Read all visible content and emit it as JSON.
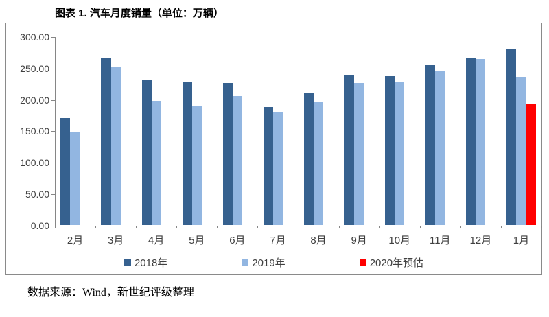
{
  "title": "图表 1. 汽车月度销量（单位：万辆）",
  "source": "数据来源：Wind，新世纪评级整理",
  "colors": {
    "series_2018": "#36618F",
    "series_2019": "#92B6E1",
    "series_2020": "#FF0000",
    "axis_line": "#868686",
    "tick_label": "#404040",
    "frame_border": "#8A8A8A"
  },
  "chart_data": {
    "type": "bar",
    "title": "图表 1. 汽车月度销量（单位：万辆）",
    "categories": [
      "2月",
      "3月",
      "4月",
      "5月",
      "6月",
      "7月",
      "8月",
      "9月",
      "10月",
      "11月",
      "12月",
      "1月"
    ],
    "series": [
      {
        "name": "2018年",
        "color": "#36618F",
        "values": [
          171,
          266,
          232,
          229,
          227,
          189,
          210,
          239,
          238,
          255,
          266,
          281
        ]
      },
      {
        "name": "2019年",
        "color": "#92B6E1",
        "values": [
          148,
          252,
          198,
          191,
          206,
          181,
          196,
          227,
          228,
          246,
          265,
          237
        ]
      },
      {
        "name": "2020年预估",
        "color": "#FF0000",
        "values": [
          null,
          null,
          null,
          null,
          null,
          null,
          null,
          null,
          null,
          null,
          null,
          194
        ]
      }
    ],
    "ylim": [
      0,
      300
    ],
    "ytick_step": 50,
    "ytick_labels": [
      "0.00",
      "50.00",
      "100.00",
      "150.00",
      "200.00",
      "250.00",
      "300.00"
    ],
    "grid": false,
    "legend_position": "bottom"
  }
}
